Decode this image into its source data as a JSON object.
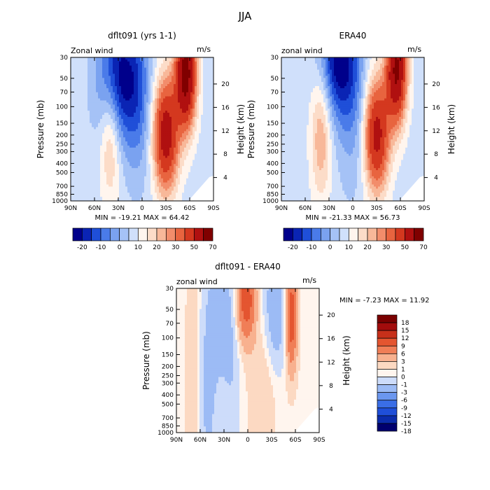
{
  "page": {
    "title": "JJA"
  },
  "palettes": {
    "wind": [
      "#00008b",
      "#0a24b4",
      "#1f4fd8",
      "#4a7be9",
      "#7aa2f0",
      "#a5c2f6",
      "#d0e0fb",
      "#fff5ee",
      "#fcdcc8",
      "#f8b899",
      "#f28d6b",
      "#e8643f",
      "#d4381f",
      "#b01010",
      "#800000"
    ],
    "diff": [
      "#00006e",
      "#0b2cab",
      "#1f4fd8",
      "#3a6ee6",
      "#6b97ef",
      "#9cbbf5",
      "#cddcfa",
      "#fff5ee",
      "#fcd9c2",
      "#f8b18f",
      "#f07e57",
      "#e45530",
      "#c7301a",
      "#a30c0c",
      "#7a0000"
    ]
  },
  "chart_data": [
    {
      "type": "heatmap",
      "title": "dflt091 (yrs 1-1)",
      "field_label": "Zonal wind",
      "units": "m/s",
      "ylabel": "Pressure (mb)",
      "ylabel_right": "Height (km)",
      "x_ticks": [
        "90N",
        "60N",
        "30N",
        "0",
        "30S",
        "60S",
        "90S"
      ],
      "x_lat": [
        90,
        60,
        30,
        0,
        -30,
        -60,
        -90
      ],
      "y_ticks": [
        "30",
        "50",
        "70",
        "100",
        "150",
        "200",
        "250",
        "300",
        "400",
        "500",
        "700",
        "850",
        "1000"
      ],
      "y_pressure": [
        30,
        50,
        70,
        100,
        150,
        200,
        250,
        300,
        400,
        500,
        700,
        850,
        1000
      ],
      "height_ticks": [
        "20",
        "16",
        "12",
        "8",
        "4"
      ],
      "height_km": [
        20,
        16,
        12,
        8,
        4
      ],
      "stats": "MIN = -19.21   MAX = 64.42",
      "levels": [
        -20,
        -10,
        0,
        10,
        20,
        30,
        50,
        70
      ],
      "colorbar_labels": [
        "-20",
        "-10",
        "0",
        "10",
        "20",
        "30",
        "50",
        "70"
      ],
      "palette": "wind",
      "bands": [
        -22,
        -18,
        -14,
        -10,
        -6,
        -2,
        2,
        6,
        10,
        14,
        18,
        24,
        32,
        44,
        56
      ],
      "features": [
        {
          "lat": 30,
          "p": 50,
          "amp": -24,
          "slat": 18,
          "sp": 1.1
        },
        {
          "lat": 40,
          "p": 200,
          "amp": 14,
          "slat": 9,
          "sp": 1.1
        },
        {
          "lat": 5,
          "p": 80,
          "amp": -10,
          "slat": 12,
          "sp": 1.4
        },
        {
          "lat": -30,
          "p": 200,
          "amp": 38,
          "slat": 11,
          "sp": 0.95
        },
        {
          "lat": -55,
          "p": 45,
          "amp": 50,
          "slat": 9,
          "sp": 0.9
        }
      ]
    },
    {
      "type": "heatmap",
      "title": "ERA40",
      "field_label": "zonal wind",
      "units": "m/s",
      "ylabel": "Pressure (mb)",
      "ylabel_right": "Height (km)",
      "x_ticks": [
        "90N",
        "60N",
        "30N",
        "0",
        "30S",
        "60S",
        "90S"
      ],
      "x_lat": [
        90,
        60,
        30,
        0,
        -30,
        -60,
        -90
      ],
      "y_ticks": [
        "30",
        "50",
        "70",
        "100",
        "150",
        "200",
        "250",
        "300",
        "400",
        "500",
        "700",
        "850",
        "1000"
      ],
      "y_pressure": [
        30,
        50,
        70,
        100,
        150,
        200,
        250,
        300,
        400,
        500,
        700,
        850,
        1000
      ],
      "height_ticks": [
        "20",
        "16",
        "12",
        "8",
        "4"
      ],
      "height_km": [
        20,
        16,
        12,
        8,
        4
      ],
      "stats": "MIN = -21.33   MAX = 56.73",
      "levels": [
        -20,
        -10,
        0,
        10,
        20,
        30,
        50,
        70
      ],
      "colorbar_labels": [
        "-20",
        "-10",
        "0",
        "10",
        "20",
        "30",
        "50",
        "70"
      ],
      "palette": "wind",
      "bands": [
        -22,
        -18,
        -14,
        -10,
        -6,
        -2,
        2,
        6,
        10,
        14,
        18,
        24,
        32,
        44,
        56
      ],
      "features": [
        {
          "lat": 18,
          "p": 30,
          "amp": -24,
          "slat": 16,
          "sp": 1.0
        },
        {
          "lat": 40,
          "p": 200,
          "amp": 14,
          "slat": 9,
          "sp": 1.1
        },
        {
          "lat": 0,
          "p": 100,
          "amp": -8,
          "slat": 14,
          "sp": 1.4
        },
        {
          "lat": -30,
          "p": 200,
          "amp": 36,
          "slat": 11,
          "sp": 0.95
        },
        {
          "lat": -55,
          "p": 40,
          "amp": 46,
          "slat": 9,
          "sp": 0.9
        }
      ]
    },
    {
      "type": "heatmap",
      "title": "dflt091 - ERA40",
      "field_label": "zonal wind",
      "units": "m/s",
      "ylabel": "Pressure (mb)",
      "ylabel_right": "Height (km)",
      "x_ticks": [
        "90N",
        "60N",
        "30N",
        "0",
        "30S",
        "60S",
        "90S"
      ],
      "x_lat": [
        90,
        60,
        30,
        0,
        -30,
        -60,
        -90
      ],
      "y_ticks": [
        "30",
        "50",
        "70",
        "100",
        "150",
        "200",
        "250",
        "300",
        "400",
        "500",
        "700",
        "850",
        "1000"
      ],
      "y_pressure": [
        30,
        50,
        70,
        100,
        150,
        200,
        250,
        300,
        400,
        500,
        700,
        850,
        1000
      ],
      "height_ticks": [
        "20",
        "16",
        "12",
        "8",
        "4"
      ],
      "height_km": [
        20,
        16,
        12,
        8,
        4
      ],
      "stats": "MIN =  -7.23   MAX =  11.92",
      "levels": [
        18,
        15,
        12,
        9,
        6,
        3,
        1,
        0,
        -1,
        -3,
        -6,
        -9,
        -12,
        -15,
        -18
      ],
      "colorbar_labels": [
        "18",
        "15",
        "12",
        "9",
        "6",
        "3",
        "1",
        "0",
        "-1",
        "-3",
        "-6",
        "-9",
        "-12",
        "-15",
        "-18"
      ],
      "palette": "diff",
      "bands": [
        -16.5,
        -13.5,
        -10.5,
        -7.5,
        -4.5,
        -2,
        -0.5,
        0.5,
        2,
        4.5,
        7.5,
        10.5,
        13.5,
        16.5,
        99
      ],
      "features": [
        {
          "lat": 2,
          "p": 40,
          "amp": 10,
          "slat": 8,
          "sp": 0.7
        },
        {
          "lat": -55,
          "p": 60,
          "amp": 10,
          "slat": 5,
          "sp": 0.9
        },
        {
          "lat": 35,
          "p": 60,
          "amp": -4,
          "slat": 12,
          "sp": 1.0
        },
        {
          "lat": -35,
          "p": 50,
          "amp": -4,
          "slat": 10,
          "sp": 1.0
        },
        {
          "lat": 70,
          "p": 300,
          "amp": 2,
          "slat": 6,
          "sp": 2.0
        },
        {
          "lat": -18,
          "p": 400,
          "amp": 2,
          "slat": 12,
          "sp": 1.2
        },
        {
          "lat": 50,
          "p": 500,
          "amp": -2.5,
          "slat": 8,
          "sp": 1.4
        },
        {
          "lat": 20,
          "p": 300,
          "amp": -1.5,
          "slat": 8,
          "sp": 1.2
        }
      ]
    }
  ]
}
